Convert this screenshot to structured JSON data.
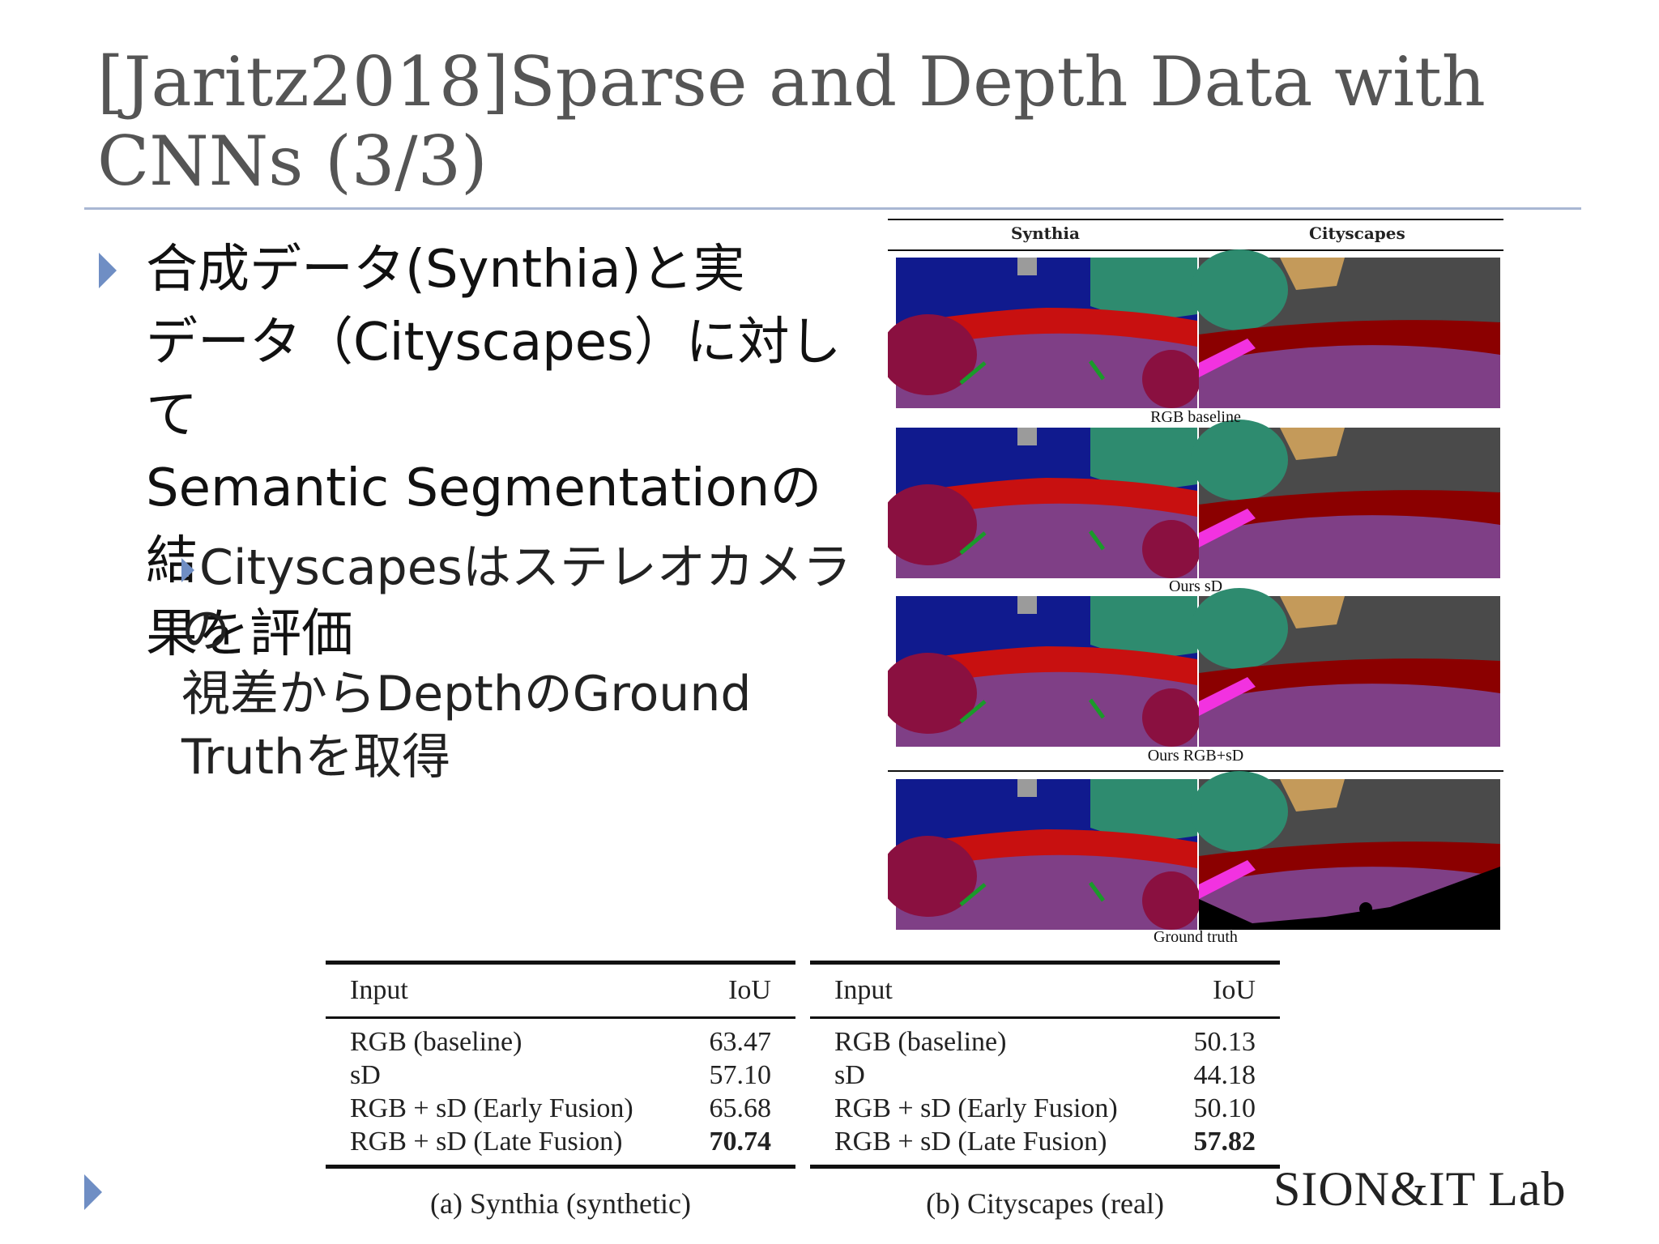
{
  "slide": {
    "title_line1": "[Jaritz2018]Sparse and Depth Data with",
    "title_line2": "CNNs (3/3)",
    "bullet_main": [
      "合成データ(Synthia)と実",
      "データ（Cityscapes）に対して",
      "Semantic Segmentationの結",
      "果を評価"
    ],
    "bullet_sub": [
      "Cityscapesはステレオカメラの",
      "視差からDepthのGround",
      "Truthを取得"
    ]
  },
  "figure": {
    "col_headers": [
      "Synthia",
      "Cityscapes"
    ],
    "row_captions": [
      "RGB baseline",
      "Ours sD",
      "Ours RGB+sD",
      "Ground truth"
    ]
  },
  "tables": [
    {
      "header": {
        "input": "Input",
        "metric": "IoU"
      },
      "rows": [
        {
          "input": "RGB (baseline)",
          "iou": "63.47",
          "best": false
        },
        {
          "input": "sD",
          "iou": "57.10",
          "best": false
        },
        {
          "input": "RGB + sD (Early Fusion)",
          "iou": "65.68",
          "best": false
        },
        {
          "input": "RGB + sD (Late Fusion)",
          "iou": "70.74",
          "best": true
        }
      ],
      "caption": "(a) Synthia (synthetic)"
    },
    {
      "header": {
        "input": "Input",
        "metric": "IoU"
      },
      "rows": [
        {
          "input": "RGB (baseline)",
          "iou": "50.13",
          "best": false
        },
        {
          "input": "sD",
          "iou": "44.18",
          "best": false
        },
        {
          "input": "RGB + sD (Early Fusion)",
          "iou": "50.10",
          "best": false
        },
        {
          "input": "RGB + sD (Late Fusion)",
          "iou": "57.82",
          "best": true
        }
      ],
      "caption": "(b) Cityscapes (real)"
    }
  ],
  "logo": "SION&IT Lab",
  "colors": {
    "accent": "#6f8ec4",
    "road": "#7f3f86",
    "sky": "#101a8e",
    "vegetation": "#2e8b6f",
    "car": "#c81010",
    "building": "#4a4a4a",
    "sidewalk": "#f232e0"
  }
}
